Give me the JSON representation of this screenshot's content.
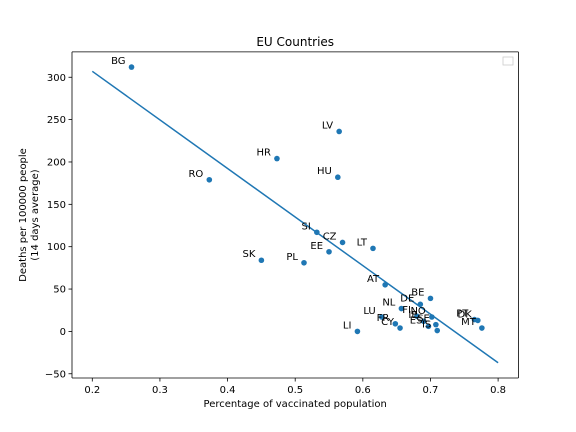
{
  "chart_data": {
    "type": "scatter",
    "title": "EU Countries",
    "xlabel": "Percentage of vaccinated population",
    "ylabel_lines": [
      "Deaths per 100000 people",
      "(14 days average)"
    ],
    "xlim": [
      0.17,
      0.83
    ],
    "ylim": [
      -55,
      330
    ],
    "xticks": [
      0.2,
      0.3,
      0.4,
      0.5,
      0.6,
      0.7,
      0.8
    ],
    "xtick_labels": [
      "0.2",
      "0.3",
      "0.4",
      "0.5",
      "0.6",
      "0.7",
      "0.8"
    ],
    "yticks": [
      -50,
      0,
      50,
      100,
      150,
      200,
      250,
      300
    ],
    "ytick_labels": [
      "−50",
      "0",
      "50",
      "100",
      "150",
      "200",
      "250",
      "300"
    ],
    "grid": false,
    "legend": "top-right, empty",
    "point_color": "#1f77b4",
    "line_color": "#1f77b4",
    "points": [
      {
        "label": "BG",
        "x": 0.258,
        "y": 312
      },
      {
        "label": "LV",
        "x": 0.565,
        "y": 236
      },
      {
        "label": "HR",
        "x": 0.473,
        "y": 204
      },
      {
        "label": "HU",
        "x": 0.563,
        "y": 182
      },
      {
        "label": "RO",
        "x": 0.373,
        "y": 179
      },
      {
        "label": "SI",
        "x": 0.532,
        "y": 117
      },
      {
        "label": "CZ",
        "x": 0.57,
        "y": 105
      },
      {
        "label": "LT",
        "x": 0.615,
        "y": 98
      },
      {
        "label": "EE",
        "x": 0.55,
        "y": 94
      },
      {
        "label": "SK",
        "x": 0.45,
        "y": 84
      },
      {
        "label": "PL",
        "x": 0.513,
        "y": 81
      },
      {
        "label": "AT",
        "x": 0.633,
        "y": 55
      },
      {
        "label": "BE",
        "x": 0.7,
        "y": 39
      },
      {
        "label": "DE",
        "x": 0.685,
        "y": 32
      },
      {
        "label": "NL",
        "x": 0.657,
        "y": 27
      },
      {
        "label": "LU",
        "x": 0.628,
        "y": 17
      },
      {
        "label": "FI",
        "x": 0.68,
        "y": 18
      },
      {
        "label": "NO",
        "x": 0.702,
        "y": 17
      },
      {
        "label": "FR",
        "x": 0.648,
        "y": 9
      },
      {
        "label": "CY",
        "x": 0.655,
        "y": 4
      },
      {
        "label": "IE",
        "x": 0.69,
        "y": 12
      },
      {
        "label": "ES",
        "x": 0.697,
        "y": 6
      },
      {
        "label": "IS",
        "x": 0.71,
        "y": 1
      },
      {
        "label": "DK",
        "x": 0.77,
        "y": 13
      },
      {
        "label": "PT",
        "x": 0.765,
        "y": 14
      },
      {
        "label": "MT",
        "x": 0.776,
        "y": 4
      },
      {
        "label": "LI",
        "x": 0.592,
        "y": 0
      },
      {
        "label": "SE",
        "x": 0.708,
        "y": 8
      }
    ],
    "fit_line": {
      "x": [
        0.2,
        0.8
      ],
      "y": [
        307,
        -37
      ]
    }
  }
}
